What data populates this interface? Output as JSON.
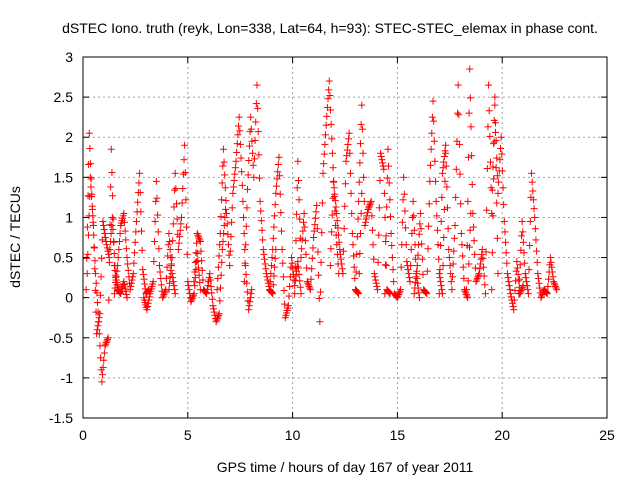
{
  "chart_data": {
    "type": "scatter",
    "title": "dSTEC Iono. truth (reyk, Lon=338, Lat=64, h=93): STEC-STEC_elemax in phase cont.",
    "xlabel": "GPS time / hours of day 167 of year 2011",
    "ylabel": "dSTEC  / TECUs",
    "xlim": [
      0,
      25
    ],
    "ylim": [
      -1.5,
      3
    ],
    "x_ticks": [
      0,
      5,
      10,
      15,
      20,
      25
    ],
    "y_ticks": [
      -1.5,
      -1,
      -0.5,
      0,
      0.5,
      1,
      1.5,
      2,
      2.5,
      3
    ],
    "x_tick_labels": [
      "0",
      "5",
      "10",
      "15",
      "20",
      "25"
    ],
    "y_tick_labels": [
      "-1.5",
      "-1",
      "-0.5",
      "0",
      "0.5",
      "1",
      "1.5",
      "2",
      "2.5",
      "3"
    ],
    "grid": true,
    "marker": "plus",
    "color": "#ff0000",
    "series": [
      {
        "arcs": [
          {
            "x": [
              0.15,
              0.3,
              0.45,
              0.6,
              0.75,
              0.9,
              1.05,
              1.2,
              1.35,
              1.5,
              1.65,
              1.8,
              1.95,
              2.1
            ],
            "y": [
              0.1,
              2.05,
              1.1,
              0.3,
              -0.3,
              -1.05,
              -0.6,
              -0.5,
              1.85,
              0.4,
              0.1,
              0.05,
              0.2,
              0.0
            ]
          },
          {
            "x": [
              0.2,
              0.35,
              0.5,
              0.65,
              0.8,
              0.95,
              1.1,
              1.25,
              1.4,
              1.55,
              1.7
            ],
            "y": [
              0.3,
              1.5,
              0.9,
              -0.45,
              -0.2,
              0.95,
              0.7,
              0.5,
              1.0,
              0.25,
              0.1
            ]
          },
          {
            "x": [
              1.5,
              1.65,
              1.8,
              1.95,
              2.1,
              2.25,
              2.4,
              2.55,
              2.7,
              2.85,
              3.0,
              3.15
            ],
            "y": [
              0.05,
              0.4,
              0.9,
              1.05,
              0.5,
              0.1,
              0.3,
              0.95,
              1.55,
              0.35,
              0.05,
              0.1
            ]
          },
          {
            "x": [
              2.9,
              3.05,
              3.2,
              3.35,
              3.5,
              3.65,
              3.8,
              3.95,
              4.1,
              4.25,
              4.4
            ],
            "y": [
              0.0,
              -0.15,
              0.05,
              0.2,
              1.45,
              0.4,
              0.0,
              0.1,
              0.8,
              0.3,
              0.05
            ]
          },
          {
            "x": [
              4.1,
              4.25,
              4.4,
              4.55,
              4.7,
              4.85,
              5.0,
              5.15,
              5.3,
              5.45,
              5.6
            ],
            "y": [
              0.1,
              0.5,
              1.55,
              0.6,
              1.0,
              1.9,
              0.2,
              -0.05,
              0.05,
              0.55,
              0.1
            ]
          },
          {
            "x": [
              5.3,
              5.45,
              5.6,
              5.75,
              5.9,
              6.05,
              6.2,
              6.35,
              6.5,
              6.65,
              6.8
            ],
            "y": [
              0.2,
              0.8,
              0.7,
              0.1,
              0.05,
              0.3,
              -0.1,
              -0.3,
              -0.2,
              0.6,
              1.1
            ]
          },
          {
            "x": [
              6.4,
              6.55,
              6.7,
              6.85,
              7.0,
              7.15,
              7.3,
              7.45,
              7.6,
              7.75,
              7.9,
              8.05
            ],
            "y": [
              0.1,
              0.8,
              1.85,
              1.05,
              0.4,
              1.3,
              1.7,
              2.25,
              1.4,
              0.4,
              -0.15,
              0.1
            ]
          },
          {
            "x": [
              7.7,
              7.85,
              8.0,
              8.15,
              8.3,
              8.45,
              8.6,
              8.75,
              8.9,
              9.05,
              9.2
            ],
            "y": [
              0.2,
              1.35,
              2.25,
              1.5,
              2.65,
              1.2,
              0.6,
              0.3,
              0.1,
              0.05,
              0.6
            ]
          },
          {
            "x": [
              8.9,
              9.05,
              9.2,
              9.35,
              9.5,
              9.65,
              9.8,
              9.95,
              10.1,
              10.25,
              10.4
            ],
            "y": [
              0.1,
              0.6,
              1.3,
              1.75,
              0.6,
              -0.25,
              -0.1,
              0.5,
              0.15,
              0.45,
              0.05
            ]
          },
          {
            "x": [
              10.1,
              10.25,
              10.4,
              10.55,
              10.7,
              10.85,
              11.0,
              11.15,
              11.3,
              11.45,
              11.6,
              11.75,
              11.9,
              12.05,
              12.2
            ],
            "y": [
              0.05,
              1.7,
              0.5,
              1.05,
              0.2,
              0.1,
              0.75,
              1.15,
              -0.3,
              1.55,
              2.15,
              2.7,
              1.8,
              0.9,
              0.3
            ]
          },
          {
            "x": [
              11.8,
              11.95,
              12.1,
              12.25,
              12.4,
              12.55,
              12.7,
              12.85,
              13.0,
              13.15,
              13.3
            ],
            "y": [
              0.4,
              1.45,
              1.05,
              0.6,
              0.3,
              1.7,
              2.05,
              0.8,
              0.1,
              0.05,
              1.3
            ]
          },
          {
            "x": [
              13.0,
              13.15,
              13.3,
              13.45,
              13.6,
              13.75,
              13.9,
              14.05,
              14.2,
              14.35,
              14.5,
              14.65
            ],
            "y": [
              0.1,
              1.2,
              2.4,
              0.9,
              1.1,
              1.2,
              0.3,
              0.1,
              1.8,
              1.6,
              0.1,
              0.05
            ]
          },
          {
            "x": [
              14.4,
              14.55,
              14.7,
              14.85,
              15.0,
              15.15,
              15.3,
              15.45,
              15.6,
              15.75,
              15.9,
              16.05
            ],
            "y": [
              0.05,
              1.85,
              0.8,
              0.05,
              0.0,
              0.1,
              1.5,
              0.45,
              0.2,
              1.2,
              0.3,
              0.0
            ]
          },
          {
            "x": [
              15.8,
              15.95,
              16.1,
              16.25,
              16.4,
              16.55,
              16.7,
              16.85,
              17.0,
              17.15,
              17.3
            ],
            "y": [
              0.05,
              0.4,
              1.05,
              0.1,
              0.05,
              1.45,
              2.45,
              1.2,
              0.3,
              0.05,
              1.8
            ]
          },
          {
            "x": [
              17.0,
              17.15,
              17.3,
              17.45,
              17.6,
              17.75,
              17.9,
              18.05,
              18.2,
              18.35,
              18.5
            ],
            "y": [
              0.05,
              1.55,
              1.9,
              0.6,
              0.1,
              0.9,
              2.65,
              0.8,
              0.1,
              0.0,
              1.05
            ]
          },
          {
            "x": [
              18.3,
              18.45,
              18.6,
              18.75,
              18.9,
              19.05,
              19.2,
              19.35,
              19.5,
              19.65,
              19.8
            ],
            "y": [
              0.1,
              2.85,
              1.05,
              0.2,
              0.3,
              0.6,
              0.05,
              2.65,
              1.05,
              2.5,
              0.3
            ]
          },
          {
            "x": [
              19.5,
              19.65,
              19.8,
              19.95,
              20.1,
              20.25,
              20.4,
              20.55,
              20.7,
              20.85,
              21.0
            ],
            "y": [
              0.1,
              2.4,
              1.3,
              2.0,
              0.95,
              0.3,
              0.05,
              -0.15,
              0.45,
              0.05,
              0.15
            ]
          },
          {
            "x": [
              20.8,
              20.95,
              21.1,
              21.25,
              21.4,
              21.55,
              21.7,
              21.85,
              22.0,
              22.15,
              22.3,
              22.45,
              22.6
            ],
            "y": [
              0.05,
              0.95,
              0.3,
              0.05,
              1.55,
              1.0,
              0.3,
              0.0,
              0.1,
              0.05,
              0.5,
              0.2,
              0.1
            ]
          }
        ]
      }
    ]
  }
}
